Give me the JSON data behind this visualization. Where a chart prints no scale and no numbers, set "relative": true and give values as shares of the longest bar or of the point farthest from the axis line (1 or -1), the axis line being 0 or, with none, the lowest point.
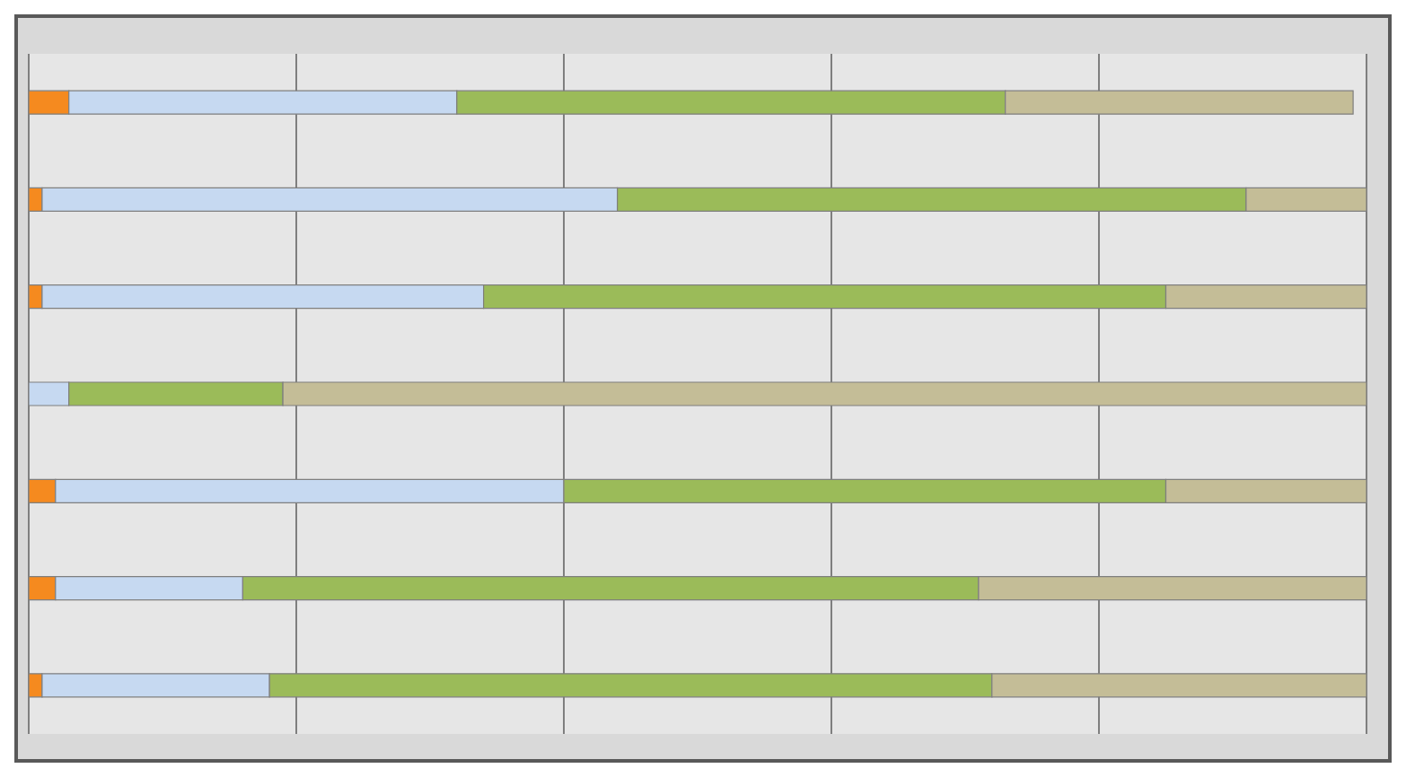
{
  "chart_data": {
    "type": "bar",
    "orientation": "horizontal",
    "stacked": true,
    "relative": true,
    "grid": "x",
    "legend": false,
    "categories": [
      null,
      null,
      null,
      null,
      null,
      null,
      null
    ],
    "series": [
      {
        "color": "#f58a1f",
        "values": [
          0.03,
          0.01,
          0.01,
          0,
          0.02,
          0.02,
          0.01
        ]
      },
      {
        "color": "#c6d9f1",
        "values": [
          0.29,
          0.43,
          0.33,
          0.03,
          0.38,
          0.14,
          0.17
        ]
      },
      {
        "color": "#9bbb59",
        "values": [
          0.41,
          0.47,
          0.51,
          0.16,
          0.45,
          0.55,
          0.54
        ]
      },
      {
        "color": "#c4bd97",
        "values": [
          0.26,
          0.09,
          0.15,
          0.81,
          0.15,
          0.29,
          0.28
        ]
      }
    ]
  }
}
